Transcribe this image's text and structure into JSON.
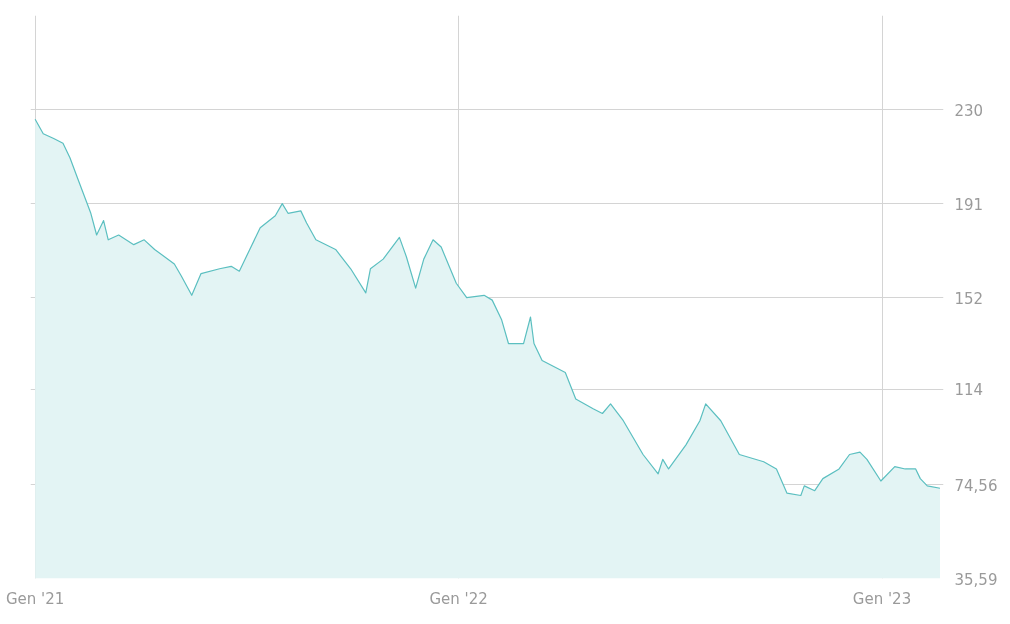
{
  "chart_data": {
    "type": "area",
    "x": [
      "2021-01-01",
      "2021-01-08",
      "2021-01-17",
      "2021-01-25",
      "2021-01-31",
      "2021-02-07",
      "2021-02-18",
      "2021-02-23",
      "2021-03-01",
      "2021-03-05",
      "2021-03-14",
      "2021-03-27",
      "2021-04-05",
      "2021-04-14",
      "2021-05-01",
      "2021-05-07",
      "2021-05-16",
      "2021-05-24",
      "2021-06-09",
      "2021-06-19",
      "2021-06-26",
      "2021-07-05",
      "2021-07-14",
      "2021-07-27",
      "2021-08-02",
      "2021-08-07",
      "2021-08-18",
      "2021-08-23",
      "2021-08-31",
      "2021-09-17",
      "2021-09-30",
      "2021-10-13",
      "2021-10-17",
      "2021-10-28",
      "2021-11-11",
      "2021-11-17",
      "2021-11-25",
      "2021-12-02",
      "2021-12-10",
      "2021-12-17",
      "2021-12-30",
      "2022-01-08",
      "2022-01-23",
      "2022-01-30",
      "2022-02-07",
      "2022-02-13",
      "2022-02-26",
      "2022-03-04",
      "2022-03-07",
      "2022-03-14",
      "2022-04-03",
      "2022-04-12",
      "2022-04-27",
      "2022-05-05",
      "2022-05-12",
      "2022-05-23",
      "2022-06-09",
      "2022-06-22",
      "2022-06-26",
      "2022-07-01",
      "2022-07-16",
      "2022-07-28",
      "2022-08-02",
      "2022-08-15",
      "2022-08-31",
      "2022-09-21",
      "2022-10-02",
      "2022-10-11",
      "2022-10-23",
      "2022-10-26",
      "2022-11-04",
      "2022-11-11",
      "2022-11-25",
      "2022-12-04",
      "2022-12-13",
      "2022-12-19",
      "2022-12-31",
      "2023-01-12",
      "2023-01-21",
      "2023-01-30",
      "2023-02-03",
      "2023-02-09",
      "2023-02-20"
    ],
    "series": [
      {
        "color": "#5bbfc0",
        "values": [
          226,
          220,
          218,
          216,
          210,
          201,
          187,
          178,
          184,
          176,
          178,
          174,
          176,
          172,
          166,
          161,
          153,
          162,
          164,
          165,
          163,
          172,
          181,
          186,
          191,
          187,
          188,
          183,
          176,
          172,
          164,
          154,
          164,
          168,
          177,
          169,
          156,
          168,
          176,
          173,
          158,
          152,
          153,
          151,
          143,
          133,
          133,
          144,
          133,
          126,
          121,
          110,
          106,
          104,
          108,
          101,
          87,
          79,
          85,
          81,
          91,
          101,
          108,
          101,
          87,
          84,
          81,
          71,
          70,
          74,
          72,
          77,
          81,
          87,
          88,
          85,
          76,
          82,
          81,
          81,
          77,
          74,
          73
        ]
      }
    ],
    "xlim": [
      "2020-12-28",
      "2023-02-23"
    ],
    "xticks": [
      {
        "value": "2021-01-01",
        "label": "Gen '21"
      },
      {
        "value": "2022-01-01",
        "label": "Gen '22"
      },
      {
        "value": "2023-01-01",
        "label": "Gen '23"
      }
    ],
    "ylim": [
      35.59,
      269
    ],
    "yticks": [
      {
        "value": 35.59,
        "label": "35,59"
      },
      {
        "value": 74.56,
        "label": "74,56"
      },
      114,
      152,
      191,
      230
    ],
    "grid": true
  }
}
